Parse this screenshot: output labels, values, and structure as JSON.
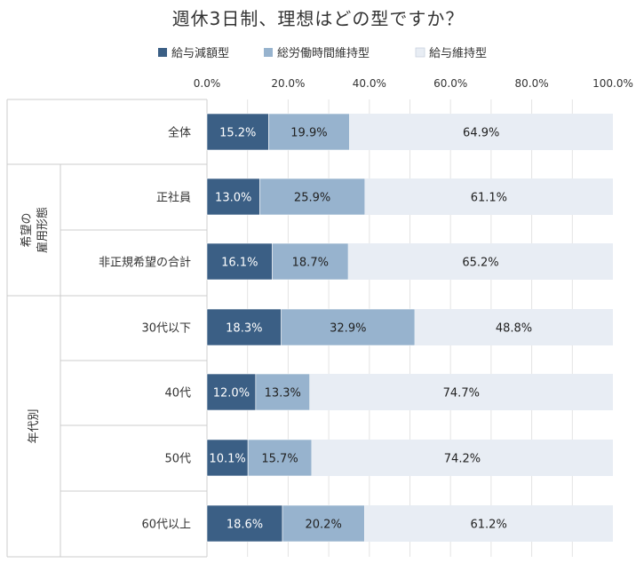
{
  "chart_data": {
    "type": "bar",
    "orientation": "horizontal",
    "stacked": true,
    "title": "週休3日制、理想はどの型ですか？",
    "xlim": [
      0,
      100
    ],
    "ticks": [
      "0.0%",
      "20.0%",
      "40.0%",
      "60.0%",
      "80.0%",
      "100.0%"
    ],
    "legend_position": "top",
    "categories": [
      "全体",
      "正社員",
      "非正規希望の合計",
      "30代以下",
      "40代",
      "50代",
      "60代以上"
    ],
    "groups": [
      {
        "label": "希望の",
        "label2": "雇用形態",
        "rows": [
          1,
          2
        ]
      },
      {
        "label": "年代別",
        "rows": [
          3,
          4,
          5,
          6
        ]
      }
    ],
    "series": [
      {
        "name": "給与減額型",
        "color": "#3b5f85",
        "values": [
          15.2,
          13.0,
          16.1,
          18.3,
          12.0,
          10.1,
          18.6
        ]
      },
      {
        "name": "総労働時間維持型",
        "color": "#97b3ce",
        "values": [
          19.9,
          25.9,
          18.7,
          32.9,
          13.3,
          15.7,
          20.2
        ]
      },
      {
        "name": "給与維持型",
        "color": "#e8edf4",
        "values": [
          64.9,
          61.1,
          65.2,
          48.8,
          74.7,
          74.2,
          61.2
        ]
      }
    ],
    "label_colors": [
      "#ffffff",
      "#222222",
      "#222222"
    ]
  }
}
